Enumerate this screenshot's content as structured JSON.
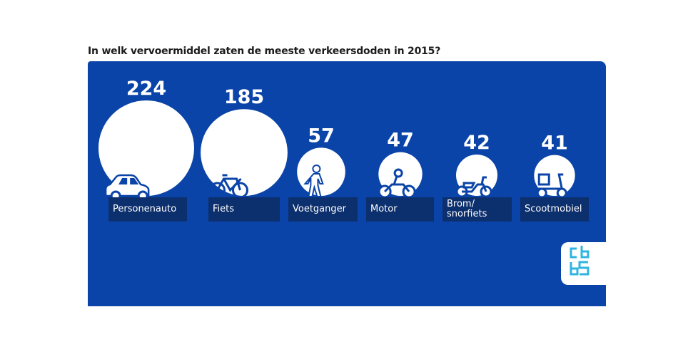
{
  "chart_data": {
    "type": "bubble",
    "title": "In welk vervoermiddel zaten de meeste verkeersdoden in 2015?",
    "unit": "verkeersdoden",
    "categories": [
      "Personenauto",
      "Fiets",
      "Voetganger",
      "Motor",
      "Brom/\nsnorfiets",
      "Scootmobiel"
    ],
    "values": [
      224,
      185,
      57,
      47,
      42,
      41
    ],
    "icons": [
      "car-icon",
      "bicycle-icon",
      "pedestrian-icon",
      "motorcycle-icon",
      "moped-icon",
      "mobility-scooter-icon"
    ],
    "legend": "none",
    "grid": false
  },
  "colors": {
    "panel": "#0b44a8",
    "label_box": "#0c2f6e",
    "bubble": "#ffffff",
    "logo_accent": "#2fb4e0"
  },
  "logo": {
    "name": "cbs-logo",
    "text": "cbs"
  }
}
